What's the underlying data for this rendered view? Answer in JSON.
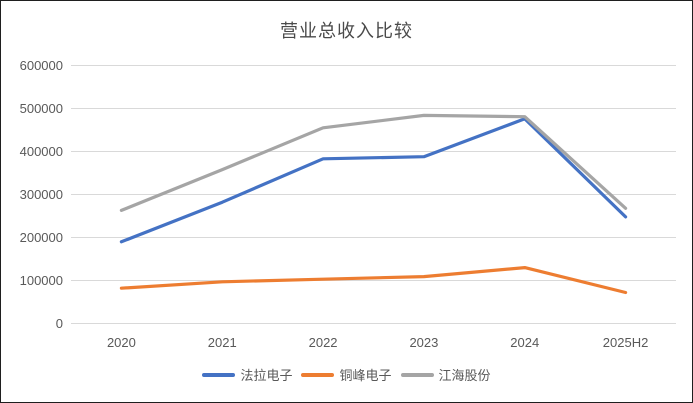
{
  "window": {
    "background": "#ffffff",
    "border_color": "#1f1f1f"
  },
  "chart_data": {
    "type": "line",
    "title": "营业总收入比较",
    "categories": [
      "2020",
      "2021",
      "2022",
      "2023",
      "2024",
      "2025H2"
    ],
    "series": [
      {
        "name": "法拉电子",
        "color": "#4472C4",
        "values": [
          190000,
          282000,
          383000,
          388000,
          476000,
          248000
        ]
      },
      {
        "name": "铜峰电子",
        "color": "#ED7D31",
        "values": [
          82000,
          97000,
          103000,
          109000,
          130000,
          72000
        ]
      },
      {
        "name": "江海股份",
        "color": "#A5A5A5",
        "values": [
          263000,
          358000,
          455000,
          484000,
          481000,
          268000
        ]
      }
    ],
    "y_axis": {
      "min": 0,
      "max": 600000,
      "step": 100000,
      "tick_labels": [
        "600000",
        "500000",
        "400000",
        "300000",
        "200000",
        "100000",
        "0"
      ]
    },
    "x_axis_label_color": "#595959",
    "y_axis_label_color": "#595959",
    "title_color": "#4a4a4a",
    "gridline_color": "#D9D9D9",
    "grid": true,
    "legend_position": "bottom"
  }
}
